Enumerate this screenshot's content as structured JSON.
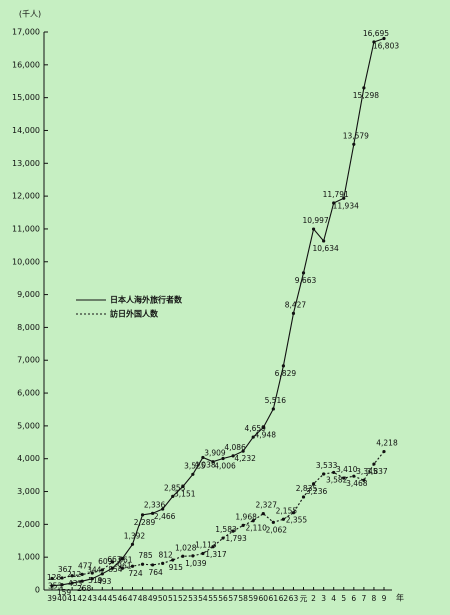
{
  "chart_data": {
    "type": "line",
    "y_label": "(千人)",
    "x_label": "年",
    "categories": [
      "39",
      "40",
      "41",
      "42",
      "43",
      "44",
      "45",
      "46",
      "47",
      "48",
      "49",
      "50",
      "51",
      "52",
      "53",
      "54",
      "55",
      "56",
      "57",
      "58",
      "59",
      "60",
      "61",
      "62",
      "63",
      "元",
      "2",
      "3",
      "4",
      "5",
      "6",
      "7",
      "8",
      "9"
    ],
    "series": [
      {
        "name": "日本人海外旅行者数",
        "color": "#111111",
        "dash": false,
        "values": [
          128,
          159,
          212,
          268,
          344,
          493,
          663,
          961,
          1392,
          2289,
          2336,
          2466,
          2853,
          3151,
          3525,
          4038,
          3909,
          4006,
          4086,
          4232,
          4659,
          4948,
          5516,
          6829,
          8427,
          9663,
          10997,
          10634,
          11791,
          11934,
          13579,
          15298,
          16695,
          16803
        ],
        "value_labels": [
          "128",
          "159",
          "212",
          "268",
          "344",
          "493",
          "663",
          "961",
          "1,392",
          "2,289",
          "2,336",
          "2,466",
          "2,853",
          "3,151",
          "3,525",
          "4,038",
          "3,909",
          "4,006",
          "4,086",
          "4,232",
          "4,659",
          "4,948",
          "5,516",
          "6,829",
          "8,427",
          "9,663",
          "10,997",
          "10,634",
          "11,791",
          "11,934",
          "13,579",
          "15,298",
          "16,695",
          "16,803"
        ]
      },
      {
        "name": "訪日外国人数",
        "color": "#111111",
        "dash": true,
        "values": [
          353,
          367,
          433,
          477,
          519,
          609,
          854,
          661,
          724,
          785,
          764,
          812,
          915,
          1028,
          1039,
          1113,
          1317,
          1583,
          1793,
          1968,
          2110,
          2327,
          2062,
          2155,
          2355,
          2835,
          3236,
          3533,
          3582,
          3410,
          3468,
          3345,
          3837,
          4218
        ],
        "value_labels": [
          "353",
          "367",
          "433",
          "477",
          "519",
          "609",
          "854",
          "661",
          "724",
          "785",
          "764",
          "812",
          "915",
          "1,028",
          "1,039",
          "1,113",
          "1,317",
          "1,583",
          "1,793",
          "1,968",
          "2,110",
          "2,327",
          "2,062",
          "2,155",
          "2,355",
          "2,835",
          "3,236",
          "3,533",
          "3,582",
          "3,410",
          "3,468",
          "3,345",
          "3,837",
          "4,218"
        ]
      }
    ],
    "ylim": [
      0,
      17000
    ],
    "yticks": [
      0,
      {
        "value": 1000,
        "label": "1,000"
      },
      {
        "value": 2000,
        "label": "2,000"
      },
      {
        "value": 3000,
        "label": "3,000"
      },
      {
        "value": 4000,
        "label": "4,000"
      },
      {
        "value": 5000,
        "label": "5,000"
      },
      {
        "value": 6000,
        "label": "6,000"
      },
      {
        "value": 7000,
        "label": "7,000"
      },
      {
        "value": 8000,
        "label": "8,000"
      },
      {
        "value": 9000,
        "label": "9,000"
      },
      {
        "value": 10000,
        "label": "10,000"
      },
      {
        "value": 11000,
        "label": "11,000"
      },
      {
        "value": 12000,
        "label": "12,000"
      },
      {
        "value": 13000,
        "label": "13,000"
      },
      {
        "value": 14000,
        "label": "14,000"
      },
      {
        "value": 15000,
        "label": "15,000"
      },
      {
        "value": 16000,
        "label": "16,000"
      },
      {
        "value": 17000,
        "label": "17,000"
      }
    ]
  }
}
